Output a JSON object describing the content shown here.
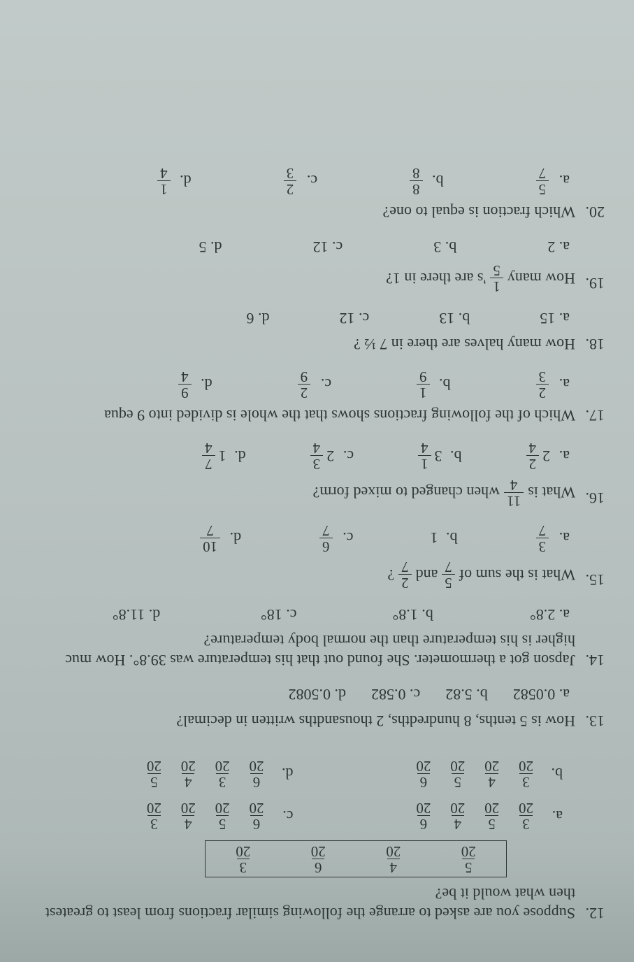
{
  "q12": {
    "number": "12.",
    "text_line1": "Suppose you are asked to arrange the following similar fractions from least to greatest",
    "text_line2": "then what would it be?",
    "box": [
      {
        "n": "5",
        "d": "20"
      },
      {
        "n": "4",
        "d": "20"
      },
      {
        "n": "6",
        "d": "20"
      },
      {
        "n": "3",
        "d": "20"
      }
    ],
    "choices": {
      "a": [
        {
          "n": "3",
          "d": "20"
        },
        {
          "n": "5",
          "d": "20"
        },
        {
          "n": "4",
          "d": "20"
        },
        {
          "n": "6",
          "d": "20"
        }
      ],
      "c": [
        {
          "n": "6",
          "d": "20"
        },
        {
          "n": "5",
          "d": "20"
        },
        {
          "n": "4",
          "d": "20"
        },
        {
          "n": "3",
          "d": "20"
        }
      ],
      "b": [
        {
          "n": "3",
          "d": "20"
        },
        {
          "n": "4",
          "d": "20"
        },
        {
          "n": "5",
          "d": "20"
        },
        {
          "n": "6",
          "d": "20"
        }
      ],
      "d": [
        {
          "n": "6",
          "d": "20"
        },
        {
          "n": "3",
          "d": "20"
        },
        {
          "n": "4",
          "d": "20"
        },
        {
          "n": "5",
          "d": "20"
        }
      ]
    },
    "letters": {
      "a": "a.",
      "b": "b.",
      "c": "c.",
      "d": "d."
    }
  },
  "q13": {
    "number": "13.",
    "text": "How is 5 tenths, 8 hundredths, 2 thousandths written in decimal?",
    "choices": {
      "a": "a. 0.0582",
      "b": "b. 5.82",
      "c": "c. 0.582",
      "d": "d. 0.5082"
    }
  },
  "q14": {
    "number": "14.",
    "text_line1": "Japson got a thermometer. She found out that his temperature was 39.8°. How muc",
    "text_line2": "higher is his temperature than the normal body temperature?",
    "choices": {
      "a": "a. 2.8°",
      "b": "b. 1.8°",
      "c": "c. 18°",
      "d": "d. 11.8°"
    }
  },
  "q15": {
    "number": "15.",
    "text_prefix": "What is  the sum of ",
    "frac1": {
      "n": "5",
      "d": "7"
    },
    "text_mid": " and ",
    "frac2": {
      "n": "2",
      "d": "7"
    },
    "text_suffix": " ?",
    "choices": {
      "a": {
        "letter": "a.",
        "n": "3",
        "d": "7"
      },
      "b": {
        "letter": "b.",
        "text": "1"
      },
      "c": {
        "letter": "c.",
        "n": "6",
        "d": "7"
      },
      "d": {
        "letter": "d.",
        "n": "10",
        "d": "7"
      }
    }
  },
  "q16": {
    "number": "16.",
    "text_prefix": "What is ",
    "frac": {
      "n": "11",
      "d": "4"
    },
    "text_suffix": " when  changed to mixed form?",
    "choices": {
      "a": {
        "letter": "a.",
        "whole": "2",
        "n": "2",
        "d": "4"
      },
      "b": {
        "letter": "b.",
        "whole": "3",
        "n": "1",
        "d": "4"
      },
      "c": {
        "letter": "c.",
        "whole": "2",
        "n": "3",
        "d": "4"
      },
      "d": {
        "letter": "d.",
        "whole": "1",
        "n": "7",
        "d": "4"
      }
    }
  },
  "q17": {
    "number": "17.",
    "text": "Which of the following fractions shows that the whole is divided into 9 equa",
    "choices": {
      "a": {
        "letter": "a.",
        "n": "2",
        "d": "3"
      },
      "b": {
        "letter": "b.",
        "n": "1",
        "d": "9"
      },
      "c": {
        "letter": "c.",
        "n": "2",
        "d": "9"
      },
      "d": {
        "letter": "d.",
        "n": "9",
        "d": "4"
      }
    }
  },
  "q18": {
    "number": "18.",
    "text": "How many halves are there in 7 ½ ?",
    "choices": {
      "a": "a. 15",
      "b": "b. 13",
      "c": "c. 12",
      "d": "d. 6"
    }
  },
  "q19": {
    "number": "19.",
    "text_prefix": "How many ",
    "frac": {
      "n": "1",
      "d": "5"
    },
    "text_suffix": "'s  are there in 1?",
    "choices": {
      "a": "a. 2",
      "b": "b. 3",
      "c": "c. 12",
      "d": "d. 5"
    }
  },
  "q20": {
    "number": "20.",
    "text": "Which fraction is equal to one?",
    "choices": {
      "a": {
        "letter": "a.",
        "n": "5",
        "d": "7"
      },
      "b": {
        "letter": "b.",
        "n": "8",
        "d": "8"
      },
      "c": {
        "letter": "c.",
        "n": "2",
        "d": "3"
      },
      "d": {
        "letter": "d.",
        "n": "1",
        "d": "4"
      }
    }
  }
}
